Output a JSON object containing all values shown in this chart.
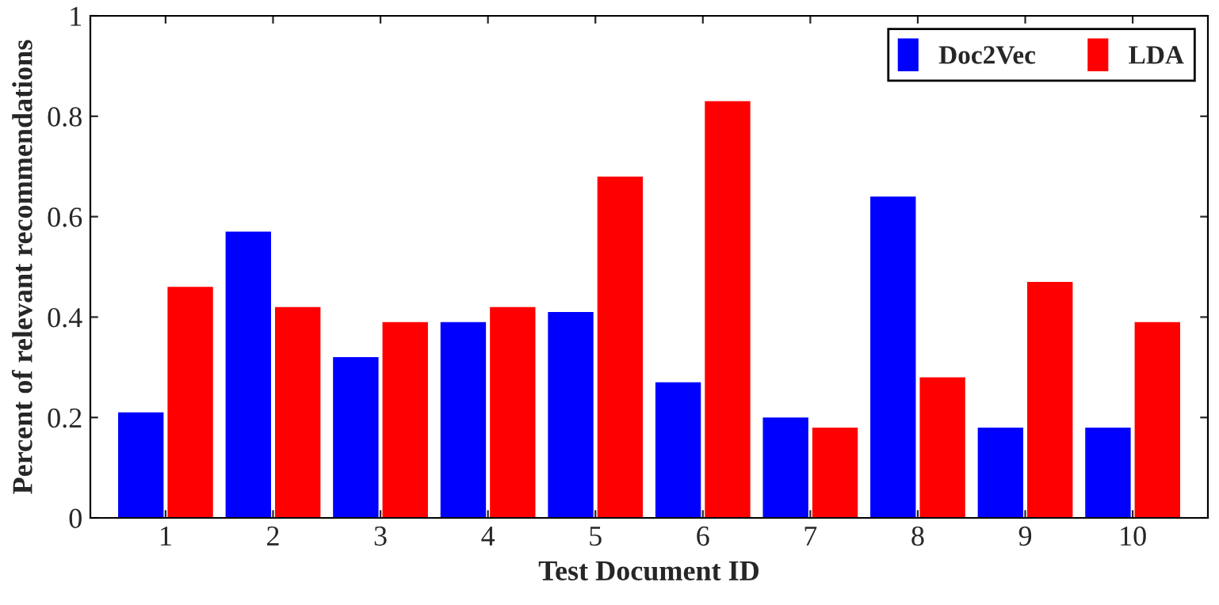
{
  "chart_data": {
    "type": "bar",
    "xlabel": "Test Document ID",
    "ylabel": "Percent of relevant recommendations",
    "categories": [
      "1",
      "2",
      "3",
      "4",
      "5",
      "6",
      "7",
      "8",
      "9",
      "10"
    ],
    "series": [
      {
        "name": "Doc2Vec",
        "color": "#0000ff",
        "values": [
          0.21,
          0.57,
          0.32,
          0.39,
          0.41,
          0.27,
          0.2,
          0.64,
          0.18,
          0.18
        ]
      },
      {
        "name": "LDA",
        "color": "#ff0000",
        "values": [
          0.46,
          0.42,
          0.39,
          0.42,
          0.68,
          0.83,
          0.18,
          0.28,
          0.47,
          0.39
        ]
      }
    ],
    "ylim": [
      0,
      1
    ],
    "yticks": [
      0,
      0.2,
      0.4,
      0.6,
      0.8,
      1
    ],
    "grid": false,
    "legend": "top right"
  }
}
